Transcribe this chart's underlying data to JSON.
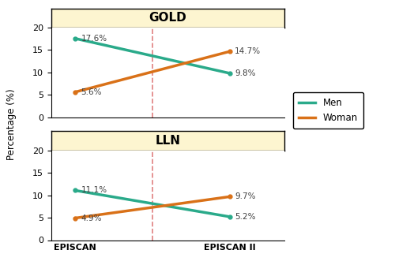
{
  "panels": [
    {
      "title": "GOLD",
      "men": [
        17.6,
        9.8
      ],
      "women": [
        5.6,
        14.7
      ],
      "men_labels": [
        "17.6%",
        "9.8%"
      ],
      "women_labels": [
        "5.6%",
        "14.7%"
      ]
    },
    {
      "title": "LLN",
      "men": [
        11.1,
        5.2
      ],
      "women": [
        4.9,
        9.7
      ],
      "men_labels": [
        "11.1%",
        "5.2%"
      ],
      "women_labels": [
        "4.9%",
        "9.7%"
      ]
    }
  ],
  "x_labels": [
    "EPISCAN",
    "EPISCAN II"
  ],
  "x_ticks": [
    0,
    1
  ],
  "ylim": [
    0,
    20
  ],
  "yticks": [
    0,
    5,
    10,
    15,
    20
  ],
  "men_color": "#2aaa8a",
  "women_color": "#d97118",
  "dashed_line_color": "#e08080",
  "panel_bg_color": "#fdf5d0",
  "title_fontsize": 11,
  "label_fontsize": 7.5,
  "tick_fontsize": 8,
  "ylabel": "Percentage (%)",
  "linewidth": 2.5,
  "legend_labels": [
    "Men",
    "Woman"
  ]
}
